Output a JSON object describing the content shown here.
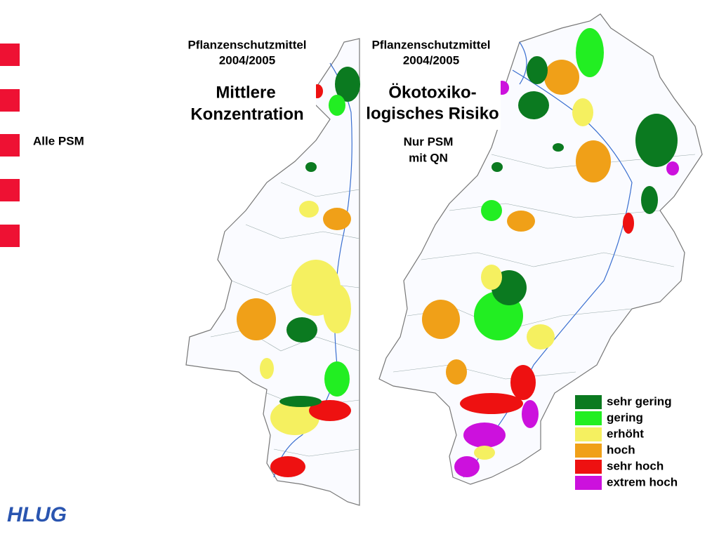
{
  "sidebar": {
    "label": "Alle PSM"
  },
  "left_map": {
    "title_lines": [
      "Pflanzenschutzmittel",
      "2004/2005"
    ],
    "heading_lines": [
      "Mittlere",
      "Konzentration"
    ]
  },
  "right_map": {
    "title_lines": [
      "Pflanzenschutzmittel",
      "2004/2005"
    ],
    "heading_lines": [
      "Ökotoxiko-",
      "logisches Risiko"
    ],
    "note_lines": [
      "Nur PSM",
      "mit QN"
    ]
  },
  "legend": {
    "items": [
      {
        "label": "sehr gering",
        "color": "#0b7a20"
      },
      {
        "label": "gering",
        "color": "#22ee22"
      },
      {
        "label": "erhöht",
        "color": "#f5f060"
      },
      {
        "label": "hoch",
        "color": "#f0a018"
      },
      {
        "label": "sehr hoch",
        "color": "#ee1111"
      },
      {
        "label": "extrem hoch",
        "color": "#cc11dd"
      }
    ]
  },
  "logo": {
    "text": "HLUG"
  }
}
